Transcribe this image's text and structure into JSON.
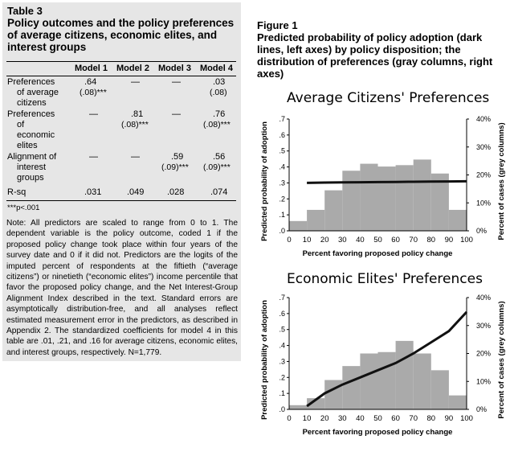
{
  "table": {
    "number": "Table 3",
    "title": "Policy outcomes and the policy preferences of average citizens, economic elites, and interest groups",
    "columns": [
      "Model 1",
      "Model 2",
      "Model 3",
      "Model 4"
    ],
    "rows": [
      {
        "label": [
          "Preferences",
          "of average",
          "citizens"
        ],
        "m1": ".64",
        "m1se": "(.08)***",
        "m2": "—",
        "m3": "—",
        "m4": ".03",
        "m4se": "(.08)"
      },
      {
        "label": [
          "Preferences",
          "of",
          "economic",
          "elites"
        ],
        "m1": "—",
        "m2": ".81",
        "m2se": "(.08)***",
        "m3": "—",
        "m4": ".76",
        "m4se": "(.08)***"
      },
      {
        "label": [
          "Alignment of",
          "interest",
          "groups"
        ],
        "m1": "—",
        "m2": "—",
        "m3": ".59",
        "m3se": "(.09)***",
        "m4": ".56",
        "m4se": "(.09)***"
      },
      {
        "label": [
          "R-sq"
        ],
        "m1": ".031",
        "m2": ".049",
        "m3": ".028",
        "m4": ".074"
      }
    ],
    "sig_note": "***p<.001",
    "note": "Note: All predictors are scaled to range from 0 to 1. The dependent variable is the policy outcome, coded 1 if the proposed policy change took place within four years of the survey date and 0 if it did not. Predictors are the logits of the imputed percent of respondents at the fiftieth (“average citizens”) or ninetieth (“economic elites”) income percentile that favor the proposed policy change, and the Net Interest-Group Alignment Index described in the text. Standard errors are asymptotically distribution-free, and all analyses reflect estimated measurement error in the predictors, as described in Appendix 2. The standardized coefficients for model 4 in this table are .01, .21, and .16 for average citizens, economic elites, and interest groups, respectively. N=1,779."
  },
  "figure": {
    "number": "Figure 1",
    "caption": "Predicted probability of policy adoption (dark lines, left axes) by policy disposition; the distribution of preferences (gray columns, right axes)"
  },
  "colors": {
    "panel_bg": "#e6e6e6",
    "bars": "#aaaaaa",
    "line": "#111111"
  },
  "chart_data": [
    {
      "type": "bar+line",
      "title": "Average Citizens' Preferences",
      "xlabel": "Percent favoring proposed policy change",
      "ylabel": "Predicted probability of adoption",
      "y2label": "Percent of cases (grey columns)",
      "xticks": [
        "0",
        "10",
        "20",
        "30",
        "40",
        "50",
        "60",
        "70",
        "80",
        "90",
        "100"
      ],
      "yticks": [
        ".0",
        ".1",
        ".2",
        ".3",
        ".4",
        ".5",
        ".6",
        ".7"
      ],
      "y2ticks": [
        "0%",
        "10%",
        "20%",
        "30%",
        "40%"
      ],
      "xlim": [
        0,
        100
      ],
      "ylim": [
        0,
        0.7
      ],
      "y2lim": [
        0,
        40
      ],
      "bar_centers": [
        5,
        15,
        25,
        35,
        45,
        55,
        65,
        75,
        85,
        95
      ],
      "bars_pct": [
        3.5,
        7.5,
        14.5,
        21.5,
        24,
        23,
        23.5,
        25.5,
        20.5,
        7.5
      ],
      "line": {
        "x": [
          10,
          20,
          30,
          40,
          50,
          60,
          70,
          80,
          90,
          100
        ],
        "y": [
          0.3,
          0.302,
          0.303,
          0.304,
          0.305,
          0.306,
          0.307,
          0.308,
          0.309,
          0.31
        ]
      }
    },
    {
      "type": "bar+line",
      "title": "Economic Elites' Preferences",
      "xlabel": "Percent favoring proposed policy change",
      "ylabel": "Predicted probability of adoption",
      "y2label": "Percent of cases (grey columns)",
      "xticks": [
        "0",
        "10",
        "20",
        "30",
        "40",
        "50",
        "60",
        "70",
        "80",
        "90",
        "100"
      ],
      "yticks": [
        ".0",
        ".1",
        ".2",
        ".3",
        ".4",
        ".5",
        ".6",
        ".7"
      ],
      "y2ticks": [
        "0%",
        "10%",
        "20%",
        "30%",
        "40%"
      ],
      "xlim": [
        0,
        100
      ],
      "ylim": [
        0,
        0.7
      ],
      "y2lim": [
        0,
        40
      ],
      "bar_centers": [
        5,
        15,
        25,
        35,
        45,
        55,
        65,
        75,
        85,
        95
      ],
      "bars_pct": [
        1.5,
        4,
        10.5,
        15.5,
        20,
        20.5,
        24.5,
        20,
        14,
        5
      ],
      "line": {
        "x": [
          10,
          20,
          30,
          40,
          50,
          60,
          70,
          80,
          90,
          100
        ],
        "y": [
          0.02,
          0.1,
          0.155,
          0.2,
          0.245,
          0.29,
          0.35,
          0.42,
          0.49,
          0.61
        ]
      }
    }
  ]
}
